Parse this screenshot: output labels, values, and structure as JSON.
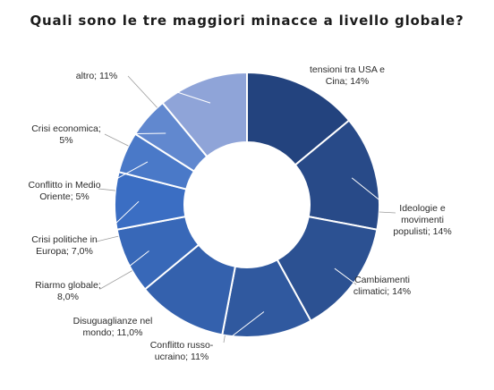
{
  "chart_data": {
    "type": "pie",
    "title": "Quali sono le tre maggiori minacce a livello globale?",
    "donut": true,
    "slices": [
      {
        "label_lines": [
          "tensioni tra USA e",
          "Cina; 14%"
        ],
        "value": 14,
        "color": "#23437e"
      },
      {
        "label_lines": [
          "Ideologie e",
          "movimenti",
          "populisti; 14%"
        ],
        "value": 14,
        "color": "#284a88"
      },
      {
        "label_lines": [
          "Cambiamenti",
          "climatici; 14%"
        ],
        "value": 14,
        "color": "#2c5192"
      },
      {
        "label_lines": [
          "Conflitto russo-",
          "ucraino; 11%"
        ],
        "value": 11,
        "color": "#30599f"
      },
      {
        "label_lines": [
          "Disuguaglianze nel",
          "mondo; 11,0%"
        ],
        "value": 11,
        "color": "#3461ad"
      },
      {
        "label_lines": [
          "Riarmo globale;",
          "8,0%"
        ],
        "value": 8,
        "color": "#3868b8"
      },
      {
        "label_lines": [
          "Crisi politiche in",
          "Europa; 7,0%"
        ],
        "value": 7,
        "color": "#3b6ec3"
      },
      {
        "label_lines": [
          "Conflitto in Medio",
          "Oriente; 5%"
        ],
        "value": 5,
        "color": "#4a79c8"
      },
      {
        "label_lines": [
          "Crisi economica;",
          "5%"
        ],
        "value": 5,
        "color": "#6188cf"
      },
      {
        "label_lines": [
          "altro; 11%"
        ],
        "value": 11,
        "color": "#8fa4d8"
      }
    ]
  }
}
